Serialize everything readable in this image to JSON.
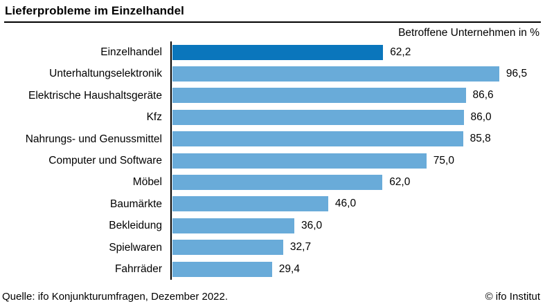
{
  "header": {
    "title": "Lieferprobleme im Einzelhandel"
  },
  "chart_data": {
    "type": "bar",
    "orientation": "horizontal",
    "title": "Lieferprobleme im Einzelhandel",
    "subtitle": "Betroffene Unternehmen in %",
    "categories": [
      "Einzelhandel",
      "Unterhaltungselektronik",
      "Elektrische Haushaltsgeräte",
      "Kfz",
      "Nahrungs- und Genussmittel",
      "Computer und Software",
      "Möbel",
      "Baumärkte",
      "Bekleidung",
      "Spielwaren",
      "Fahrräder"
    ],
    "values": [
      62.2,
      96.5,
      86.6,
      86.0,
      85.8,
      75.0,
      62.0,
      46.0,
      36.0,
      32.7,
      29.4
    ],
    "value_labels": [
      "62,2",
      "96,5",
      "86,6",
      "86,0",
      "85,8",
      "75,0",
      "62,0",
      "46,0",
      "36,0",
      "32,7",
      "29,4"
    ],
    "xlim": [
      0,
      100
    ],
    "grid": false,
    "legend": false,
    "highlight_index": 0,
    "highlight_color": "#0a76bc",
    "bar_color": "#69abd9",
    "axis_color": "#000000"
  },
  "footer": {
    "source": "Quelle: ifo Konjunkturumfragen, Dezember 2022.",
    "copyright": "© ifo Institut"
  }
}
